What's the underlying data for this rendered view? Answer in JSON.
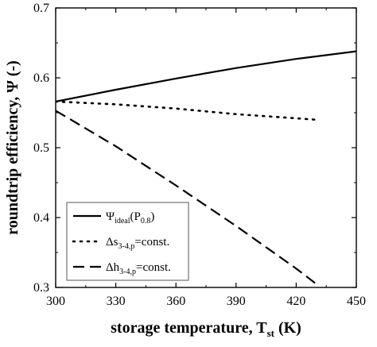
{
  "chart_data": {
    "type": "line",
    "xlabel": {
      "main": "storage temperature, T",
      "sub": "st",
      "unit": " (K)"
    },
    "ylabel": {
      "main": "roundtrip efficiency, Ψ (-)"
    },
    "xlim": [
      300,
      450
    ],
    "ylim": [
      0.3,
      0.7
    ],
    "xticks": [
      "300",
      "330",
      "360",
      "390",
      "420",
      "450"
    ],
    "yticks": [
      "0.3",
      "0.4",
      "0.5",
      "0.6",
      "0.7"
    ],
    "grid": false,
    "legend_position": "bottom-left",
    "series": [
      {
        "label_main": "Ψ",
        "label_sub": "ideal",
        "label_tail": "(P",
        "label_sub2": "0.8",
        "label_end": ")",
        "style": "solid",
        "x": [
          300,
          330,
          360,
          390,
          420,
          450
        ],
        "y": [
          0.566,
          0.583,
          0.599,
          0.614,
          0.627,
          0.638
        ]
      },
      {
        "label_main": "Δs",
        "label_sub": "3-4,p",
        "label_tail": "=const.",
        "style": "dotted",
        "x": [
          300,
          330,
          360,
          390,
          420,
          430
        ],
        "y": [
          0.566,
          0.562,
          0.556,
          0.548,
          0.542,
          0.54
        ]
      },
      {
        "label_main": "Δh",
        "label_sub": "3-4,p",
        "label_tail": "=const.",
        "style": "dashed",
        "x": [
          300,
          330,
          360,
          390,
          420,
          430
        ],
        "y": [
          0.553,
          0.502,
          0.446,
          0.388,
          0.327,
          0.305
        ]
      }
    ]
  }
}
